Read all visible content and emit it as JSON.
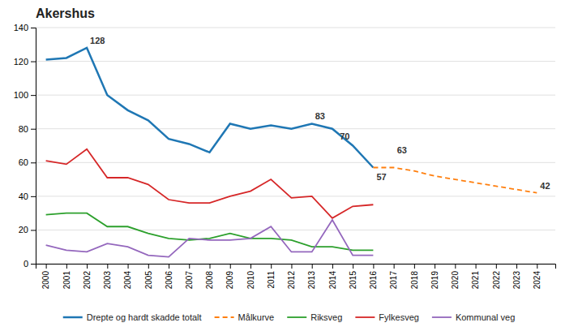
{
  "chart_data": {
    "type": "line",
    "title": "Akershus",
    "x": [
      2000,
      2001,
      2002,
      2003,
      2004,
      2005,
      2006,
      2007,
      2008,
      2009,
      2010,
      2011,
      2012,
      2013,
      2014,
      2015,
      2016,
      2017,
      2018,
      2019,
      2020,
      2021,
      2022,
      2023,
      2024
    ],
    "series": [
      {
        "name": "Drepte og hardt skadde totalt",
        "line_style": "solid",
        "values": [
          121,
          122,
          128,
          100,
          91,
          85,
          74,
          71,
          66,
          83,
          80,
          82,
          80,
          83,
          80,
          70,
          57,
          null,
          null,
          null,
          null,
          null,
          null,
          null,
          null
        ]
      },
      {
        "name": "Målkurve",
        "line_style": "dashed",
        "values": [
          null,
          null,
          null,
          null,
          null,
          null,
          null,
          null,
          null,
          null,
          null,
          null,
          null,
          null,
          null,
          null,
          57,
          57,
          55,
          52,
          50,
          48,
          46,
          44,
          42
        ]
      },
      {
        "name": "Riksveg",
        "line_style": "solid",
        "values": [
          29,
          30,
          30,
          22,
          22,
          18,
          15,
          14,
          15,
          18,
          15,
          15,
          14,
          10,
          10,
          8,
          8,
          null,
          null,
          null,
          null,
          null,
          null,
          null,
          null
        ]
      },
      {
        "name": "Fylkesveg",
        "line_style": "solid",
        "values": [
          61,
          59,
          68,
          51,
          51,
          47,
          38,
          36,
          36,
          40,
          43,
          50,
          39,
          40,
          27,
          34,
          35,
          null,
          null,
          null,
          null,
          null,
          null,
          null,
          null
        ]
      },
      {
        "name": "Kommunal veg",
        "line_style": "solid",
        "values": [
          11,
          8,
          7,
          12,
          10,
          5,
          4,
          15,
          14,
          14,
          15,
          22,
          7,
          7,
          26,
          5,
          5,
          null,
          null,
          null,
          null,
          null,
          null,
          null,
          null
        ]
      }
    ],
    "annotations": [
      {
        "text": "128",
        "x": 2002,
        "y": 128
      },
      {
        "text": "83",
        "x": 2013,
        "y": 83
      },
      {
        "text": "70",
        "x": 2015,
        "y": 70
      },
      {
        "text": "63",
        "x": 2017,
        "y": 63
      },
      {
        "text": "57",
        "x": 2016,
        "y": 57
      },
      {
        "text": "42",
        "x": 2024,
        "y": 42
      }
    ],
    "xlim": [
      1999.5,
      2024.9
    ],
    "xticks": [
      2000,
      2001,
      2002,
      2003,
      2004,
      2005,
      2006,
      2007,
      2008,
      2009,
      2010,
      2011,
      2012,
      2013,
      2014,
      2015,
      2016,
      2017,
      2018,
      2019,
      2020,
      2021,
      2022,
      2023,
      2024
    ],
    "ylim": [
      0,
      140
    ],
    "yticks": [
      0,
      20,
      40,
      60,
      80,
      100,
      120,
      140
    ],
    "grid": true,
    "legend": "bottom"
  }
}
